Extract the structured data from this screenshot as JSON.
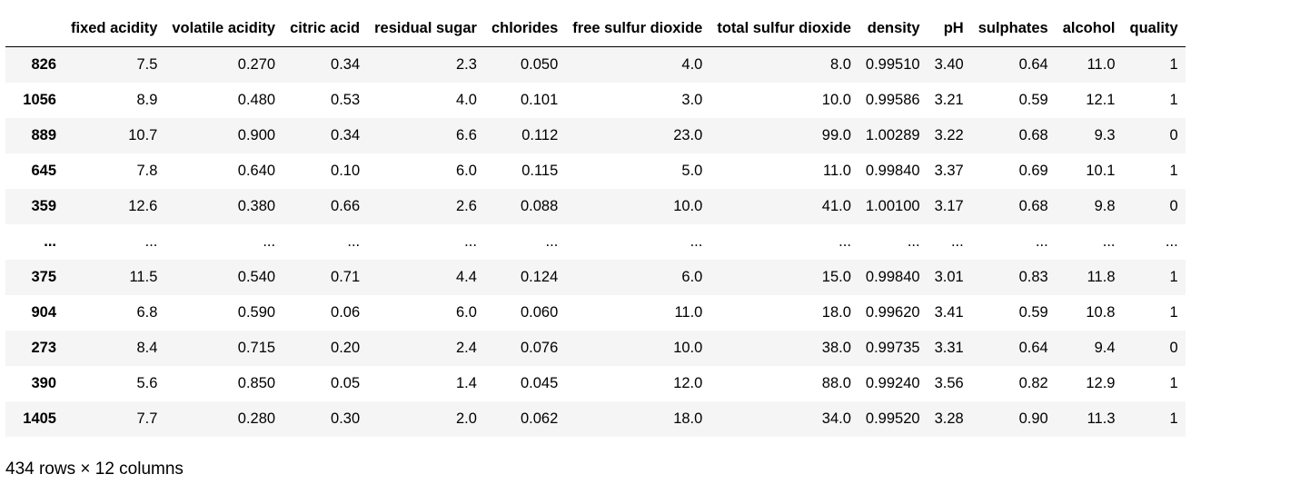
{
  "table": {
    "index_header": "",
    "columns": [
      "fixed acidity",
      "volatile acidity",
      "citric acid",
      "residual sugar",
      "chlorides",
      "free sulfur dioxide",
      "total sulfur dioxide",
      "density",
      "pH",
      "sulphates",
      "alcohol",
      "quality"
    ],
    "rows": [
      {
        "index": "826",
        "cells": [
          "7.5",
          "0.270",
          "0.34",
          "2.3",
          "0.050",
          "4.0",
          "8.0",
          "0.99510",
          "3.40",
          "0.64",
          "11.0",
          "1"
        ]
      },
      {
        "index": "1056",
        "cells": [
          "8.9",
          "0.480",
          "0.53",
          "4.0",
          "0.101",
          "3.0",
          "10.0",
          "0.99586",
          "3.21",
          "0.59",
          "12.1",
          "1"
        ]
      },
      {
        "index": "889",
        "cells": [
          "10.7",
          "0.900",
          "0.34",
          "6.6",
          "0.112",
          "23.0",
          "99.0",
          "1.00289",
          "3.22",
          "0.68",
          "9.3",
          "0"
        ]
      },
      {
        "index": "645",
        "cells": [
          "7.8",
          "0.640",
          "0.10",
          "6.0",
          "0.115",
          "5.0",
          "11.0",
          "0.99840",
          "3.37",
          "0.69",
          "10.1",
          "1"
        ]
      },
      {
        "index": "359",
        "cells": [
          "12.6",
          "0.380",
          "0.66",
          "2.6",
          "0.088",
          "10.0",
          "41.0",
          "1.00100",
          "3.17",
          "0.68",
          "9.8",
          "0"
        ]
      },
      {
        "index": "...",
        "cells": [
          "...",
          "...",
          "...",
          "...",
          "...",
          "...",
          "...",
          "...",
          "...",
          "...",
          "...",
          "..."
        ]
      },
      {
        "index": "375",
        "cells": [
          "11.5",
          "0.540",
          "0.71",
          "4.4",
          "0.124",
          "6.0",
          "15.0",
          "0.99840",
          "3.01",
          "0.83",
          "11.8",
          "1"
        ]
      },
      {
        "index": "904",
        "cells": [
          "6.8",
          "0.590",
          "0.06",
          "6.0",
          "0.060",
          "11.0",
          "18.0",
          "0.99620",
          "3.41",
          "0.59",
          "10.8",
          "1"
        ]
      },
      {
        "index": "273",
        "cells": [
          "8.4",
          "0.715",
          "0.20",
          "2.4",
          "0.076",
          "10.0",
          "38.0",
          "0.99735",
          "3.31",
          "0.64",
          "9.4",
          "0"
        ]
      },
      {
        "index": "390",
        "cells": [
          "5.6",
          "0.850",
          "0.05",
          "1.4",
          "0.045",
          "12.0",
          "88.0",
          "0.99240",
          "3.56",
          "0.82",
          "12.9",
          "1"
        ]
      },
      {
        "index": "1405",
        "cells": [
          "7.7",
          "0.280",
          "0.30",
          "2.0",
          "0.062",
          "18.0",
          "34.0",
          "0.99520",
          "3.28",
          "0.90",
          "11.3",
          "1"
        ]
      }
    ]
  },
  "footer": {
    "shape_text": "434 rows × 12 columns"
  },
  "colors": {
    "stripe": "#f5f5f5",
    "header_rule": "#000000"
  }
}
